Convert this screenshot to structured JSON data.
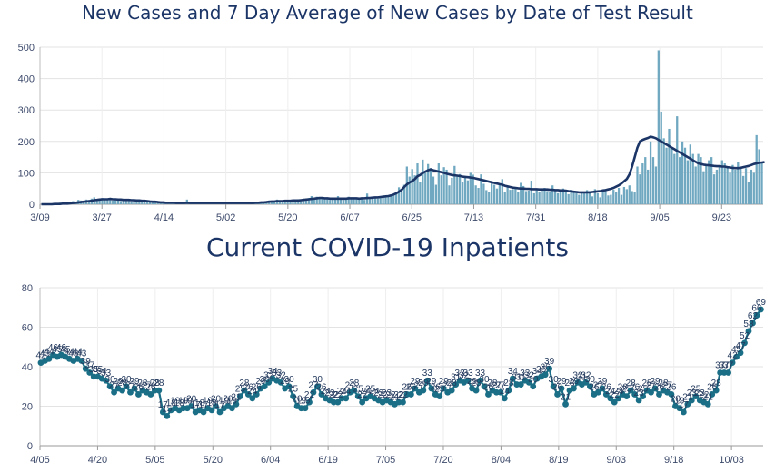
{
  "chart_data": [
    {
      "type": "bar",
      "title": "New Cases and 7 Day Average of New Cases by Date of Test Result",
      "xlabel": "",
      "ylabel": "",
      "ylim": [
        0,
        500
      ],
      "y_ticks": [
        "0",
        "100",
        "200",
        "300",
        "400",
        "500"
      ],
      "x_ticks": [
        "3/09",
        "3/27",
        "4/14",
        "5/02",
        "5/20",
        "6/07",
        "6/25",
        "7/13",
        "7/31",
        "8/18",
        "9/05",
        "9/23"
      ],
      "series": [
        {
          "name": "New Cases",
          "type": "bar",
          "color": "#6fa8c0",
          "values": [
            0,
            0,
            1,
            0,
            2,
            2,
            1,
            5,
            4,
            6,
            3,
            8,
            10,
            5,
            14,
            12,
            8,
            15,
            12,
            18,
            22,
            16,
            17,
            20,
            14,
            18,
            15,
            12,
            14,
            16,
            10,
            13,
            11,
            14,
            9,
            12,
            10,
            11,
            8,
            9,
            7,
            6,
            5,
            8,
            6,
            5,
            4,
            6,
            3,
            4,
            5,
            3,
            2,
            4,
            5,
            15,
            3,
            4,
            6,
            5,
            4,
            3,
            5,
            2,
            4,
            3,
            6,
            5,
            4,
            3,
            4,
            5,
            3,
            4,
            5,
            4,
            3,
            2,
            3,
            4,
            5,
            6,
            8,
            5,
            9,
            10,
            12,
            8,
            10,
            15,
            9,
            7,
            13,
            9,
            12,
            14,
            10,
            16,
            12,
            18,
            14,
            20,
            26,
            18,
            24,
            22,
            18,
            20,
            16,
            14,
            18,
            15,
            26,
            20,
            14,
            17,
            24,
            16,
            20,
            18,
            19,
            22,
            14,
            34,
            16,
            20,
            24,
            18,
            22,
            28,
            22,
            26,
            30,
            32,
            36,
            54,
            40,
            62,
            120,
            88,
            112,
            92,
            130,
            70,
            142,
            100,
            128,
            115,
            88,
            62,
            130,
            92,
            118,
            110,
            60,
            84,
            122,
            88,
            96,
            70,
            90,
            76,
            100,
            94,
            60,
            52,
            95,
            65,
            45,
            40,
            72,
            62,
            50,
            65,
            80,
            38,
            55,
            46,
            48,
            52,
            40,
            68,
            58,
            42,
            44,
            75,
            35,
            45,
            40,
            48,
            52,
            42,
            38,
            60,
            45,
            35,
            44,
            50,
            38,
            32,
            46,
            40,
            42,
            30,
            35,
            38,
            45,
            42,
            25,
            48,
            35,
            22,
            38,
            44,
            28,
            30,
            46,
            38,
            52,
            30,
            55,
            48,
            60,
            42,
            40,
            120,
            95,
            130,
            150,
            110,
            200,
            150,
            120,
            490,
            295,
            210,
            180,
            240,
            180,
            160,
            280,
            150,
            200,
            180,
            140,
            190,
            160,
            120,
            160,
            150,
            105,
            125,
            140,
            150,
            95,
            110,
            120,
            140,
            130,
            115,
            100,
            125,
            110,
            135,
            120,
            90,
            115,
            70,
            110,
            100,
            220,
            175,
            130
          ]
        },
        {
          "name": "7 Day Average",
          "type": "line",
          "color": "#1c3567",
          "values": [
            0,
            0,
            0,
            0,
            0,
            1,
            1,
            1,
            2,
            2,
            2,
            3,
            4,
            5,
            6,
            7,
            8,
            9,
            10,
            11,
            13,
            14,
            15,
            16,
            16,
            16,
            17,
            16,
            16,
            15,
            15,
            14,
            14,
            14,
            13,
            13,
            12,
            12,
            11,
            11,
            10,
            9,
            8,
            8,
            7,
            6,
            6,
            5,
            5,
            5,
            5,
            4,
            4,
            4,
            4,
            5,
            4,
            4,
            4,
            4,
            4,
            4,
            4,
            4,
            4,
            4,
            4,
            4,
            4,
            4,
            4,
            4,
            4,
            4,
            4,
            4,
            4,
            4,
            4,
            4,
            4,
            5,
            5,
            6,
            6,
            7,
            8,
            9,
            9,
            10,
            10,
            10,
            11,
            11,
            11,
            12,
            12,
            12,
            13,
            14,
            15,
            16,
            17,
            18,
            19,
            20,
            20,
            19,
            19,
            18,
            18,
            18,
            18,
            18,
            18,
            18,
            19,
            19,
            19,
            19,
            18,
            19,
            19,
            20,
            20,
            21,
            22,
            22,
            23,
            24,
            25,
            26,
            28,
            31,
            35,
            40,
            46,
            55,
            63,
            69,
            74,
            80,
            89,
            93,
            99,
            104,
            108,
            111,
            108,
            106,
            104,
            102,
            100,
            97,
            95,
            93,
            92,
            91,
            90,
            88,
            87,
            86,
            85,
            84,
            82,
            80,
            78,
            76,
            74,
            72,
            70,
            68,
            66,
            64,
            62,
            59,
            57,
            55,
            53,
            52,
            51,
            50,
            50,
            49,
            49,
            48,
            48,
            48,
            47,
            47,
            47,
            47,
            46,
            46,
            45,
            45,
            44,
            44,
            43,
            42,
            41,
            40,
            39,
            38,
            38,
            38,
            38,
            38,
            39,
            40,
            41,
            42,
            44,
            45,
            47,
            49,
            52,
            56,
            60,
            66,
            73,
            80,
            95,
            120,
            150,
            180,
            200,
            205,
            208,
            211,
            215,
            213,
            210,
            205,
            200,
            195,
            190,
            185,
            180,
            175,
            170,
            165,
            160,
            155,
            150,
            145,
            140,
            135,
            130,
            128,
            126,
            125,
            124,
            123,
            122,
            121,
            121,
            120,
            120,
            118,
            117,
            116,
            115,
            115,
            116,
            118,
            120,
            122,
            125,
            128,
            130,
            132,
            133,
            134
          ]
        }
      ]
    },
    {
      "type": "line",
      "title": "Current COVID-19 Inpatients",
      "xlabel": "",
      "ylabel": "",
      "ylim": [
        0,
        80
      ],
      "y_ticks": [
        "0",
        "20",
        "40",
        "60",
        "80"
      ],
      "x_ticks": [
        "4/05",
        "4/20",
        "5/05",
        "5/20",
        "6/04",
        "6/19",
        "7/05",
        "7/20",
        "8/04",
        "8/19",
        "9/03",
        "9/18",
        "10/03"
      ],
      "series": [
        {
          "name": "Current COVID-19 Inpatients",
          "color": "#1a6e86",
          "values": [
            42,
            43,
            44,
            46,
            45,
            46,
            45,
            44,
            43,
            44,
            43,
            39,
            37,
            35,
            35,
            34,
            33,
            30,
            27,
            29,
            28,
            30,
            27,
            29,
            26,
            28,
            27,
            26,
            28,
            28,
            17,
            15,
            18,
            19,
            18,
            19,
            19,
            20,
            17,
            18,
            17,
            19,
            18,
            20,
            17,
            19,
            20,
            19,
            21,
            25,
            28,
            26,
            24,
            26,
            29,
            30,
            32,
            34,
            33,
            32,
            29,
            30,
            25,
            20,
            19,
            19,
            22,
            27,
            30,
            26,
            24,
            23,
            22,
            22,
            24,
            24,
            27,
            28,
            25,
            22,
            24,
            25,
            24,
            23,
            22,
            23,
            22,
            21,
            22,
            22,
            26,
            26,
            29,
            27,
            28,
            33,
            29,
            26,
            25,
            29,
            27,
            28,
            31,
            33,
            32,
            33,
            29,
            28,
            33,
            30,
            26,
            28,
            27,
            27,
            24,
            28,
            34,
            31,
            31,
            33,
            32,
            30,
            34,
            35,
            36,
            39,
            30,
            26,
            29,
            21,
            28,
            29,
            32,
            31,
            32,
            30,
            26,
            27,
            29,
            26,
            24,
            22,
            24,
            26,
            25,
            28,
            26,
            23,
            25,
            28,
            27,
            29,
            26,
            28,
            27,
            26,
            20,
            19,
            17,
            21,
            23,
            25,
            23,
            22,
            21,
            26,
            28,
            37,
            37,
            37,
            42,
            45,
            47,
            52,
            58,
            62,
            66,
            69
          ]
        }
      ]
    }
  ]
}
